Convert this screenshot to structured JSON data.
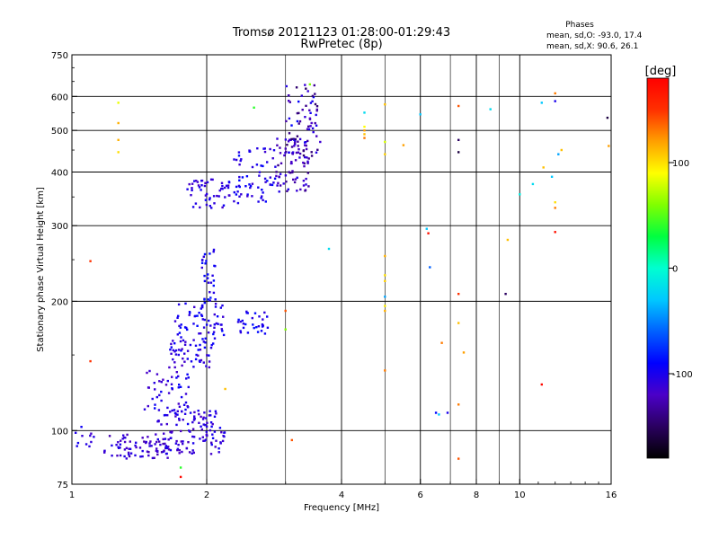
{
  "chart_data": {
    "type": "scatter",
    "title": "Tromsø 20121123 01:28:00-01:29:43",
    "subtitle": "RwPretec (8p)",
    "stats": {
      "heading": "Phases",
      "line1": "mean, sd,O: -93.0, 17.4",
      "line2": "mean, sd,X:  90.6, 26.1"
    },
    "xlabel": "Frequency [MHz]",
    "ylabel": "Stationary phase Virtual Height [km]",
    "x_scale": "log",
    "y_scale": "log",
    "xlim": [
      1,
      16
    ],
    "ylim": [
      75,
      750
    ],
    "x_ticks": [
      1,
      2,
      4,
      6,
      8,
      10,
      16
    ],
    "x_tick_labels": [
      "1",
      "2",
      "4",
      "6",
      "8",
      "10",
      "16"
    ],
    "y_ticks": [
      75,
      100,
      200,
      300,
      400,
      500,
      600,
      750
    ],
    "y_tick_labels": [
      "75",
      "100",
      "200",
      "300",
      "400",
      "500",
      "600",
      "750"
    ],
    "grid": true,
    "colorbar": {
      "label": "[deg]",
      "range": [
        -180,
        180
      ],
      "ticks": [
        100,
        0,
        -100
      ],
      "tick_labels": [
        "100",
        "0",
        "-100"
      ],
      "colors": [
        "#000000",
        "#2a0060",
        "#4b00c8",
        "#0000ff",
        "#0060ff",
        "#00c8ff",
        "#00ffd0",
        "#00ff40",
        "#80ff00",
        "#ffff00",
        "#ffa000",
        "#ff3000",
        "#ff0000"
      ]
    },
    "clusters": [
      {
        "x": [
          1.0,
          1.12
        ],
        "y": [
          90,
          100
        ],
        "n": 10,
        "phase": [
          -120,
          -95
        ]
      },
      {
        "x": [
          1.18,
          1.65
        ],
        "y": [
          86,
          98
        ],
        "n": 75,
        "phase": [
          -130,
          -100
        ]
      },
      {
        "x": [
          1.6,
          2.2
        ],
        "y": [
          88,
          102
        ],
        "n": 70,
        "phase": [
          -125,
          -95
        ]
      },
      {
        "x": [
          1.55,
          2.1
        ],
        "y": [
          102,
          112
        ],
        "n": 55,
        "phase": [
          -120,
          -95
        ]
      },
      {
        "x": [
          1.45,
          1.85
        ],
        "y": [
          112,
          140
        ],
        "n": 45,
        "phase": [
          -120,
          -90
        ]
      },
      {
        "x": [
          1.65,
          2.1
        ],
        "y": [
          140,
          165
        ],
        "n": 55,
        "phase": [
          -120,
          -90
        ]
      },
      {
        "x": [
          1.7,
          2.2
        ],
        "y": [
          160,
          200
        ],
        "n": 60,
        "phase": [
          -115,
          -85
        ]
      },
      {
        "x": [
          2.35,
          2.75
        ],
        "y": [
          168,
          190
        ],
        "n": 30,
        "phase": [
          -110,
          -85
        ]
      },
      {
        "x": [
          1.95,
          2.1
        ],
        "y": [
          200,
          265
        ],
        "n": 30,
        "phase": [
          -110,
          -80
        ]
      },
      {
        "x": [
          1.8,
          2.35
        ],
        "y": [
          330,
          385
        ],
        "n": 55,
        "phase": [
          -120,
          -95
        ]
      },
      {
        "x": [
          2.3,
          2.85
        ],
        "y": [
          340,
          460
        ],
        "n": 60,
        "phase": [
          -115,
          -85
        ]
      },
      {
        "x": [
          2.85,
          3.4
        ],
        "y": [
          360,
          480
        ],
        "n": 75,
        "phase": [
          -140,
          -100
        ]
      },
      {
        "x": [
          3.0,
          3.6
        ],
        "y": [
          430,
          640
        ],
        "n": 70,
        "phase": [
          -150,
          -90
        ]
      }
    ],
    "isolated_points": [
      {
        "x": 1.05,
        "y": 102,
        "phase": -95
      },
      {
        "x": 1.1,
        "y": 248,
        "phase": 150
      },
      {
        "x": 1.1,
        "y": 145,
        "phase": 150
      },
      {
        "x": 1.27,
        "y": 580,
        "phase": 85
      },
      {
        "x": 1.27,
        "y": 520,
        "phase": 115
      },
      {
        "x": 1.27,
        "y": 475,
        "phase": 115
      },
      {
        "x": 1.27,
        "y": 445,
        "phase": 100
      },
      {
        "x": 1.75,
        "y": 78,
        "phase": 175
      },
      {
        "x": 1.75,
        "y": 82,
        "phase": 40
      },
      {
        "x": 2.2,
        "y": 125,
        "phase": 110
      },
      {
        "x": 2.55,
        "y": 565,
        "phase": 40
      },
      {
        "x": 3.0,
        "y": 190,
        "phase": 140
      },
      {
        "x": 3.0,
        "y": 172,
        "phase": 60
      },
      {
        "x": 3.1,
        "y": 95,
        "phase": 140
      },
      {
        "x": 3.4,
        "y": 640,
        "phase": 60
      },
      {
        "x": 3.75,
        "y": 265,
        "phase": -20
      },
      {
        "x": 4.5,
        "y": 550,
        "phase": -20
      },
      {
        "x": 4.5,
        "y": 510,
        "phase": 90
      },
      {
        "x": 4.5,
        "y": 500,
        "phase": 120
      },
      {
        "x": 4.5,
        "y": 490,
        "phase": 110
      },
      {
        "x": 4.5,
        "y": 480,
        "phase": 130
      },
      {
        "x": 5.0,
        "y": 575,
        "phase": 110
      },
      {
        "x": 5.0,
        "y": 470,
        "phase": 80
      },
      {
        "x": 5.0,
        "y": 440,
        "phase": 105
      },
      {
        "x": 5.0,
        "y": 255,
        "phase": 115
      },
      {
        "x": 5.0,
        "y": 230,
        "phase": 100
      },
      {
        "x": 5.0,
        "y": 223,
        "phase": 105
      },
      {
        "x": 5.0,
        "y": 205,
        "phase": -40
      },
      {
        "x": 5.0,
        "y": 195,
        "phase": 95
      },
      {
        "x": 5.0,
        "y": 190,
        "phase": 115
      },
      {
        "x": 5.0,
        "y": 138,
        "phase": 130
      },
      {
        "x": 5.5,
        "y": 462,
        "phase": 120
      },
      {
        "x": 6.0,
        "y": 545,
        "phase": -30
      },
      {
        "x": 6.2,
        "y": 295,
        "phase": -30
      },
      {
        "x": 6.25,
        "y": 288,
        "phase": 170
      },
      {
        "x": 6.3,
        "y": 240,
        "phase": -60
      },
      {
        "x": 6.5,
        "y": 110,
        "phase": -90
      },
      {
        "x": 6.6,
        "y": 109,
        "phase": -30
      },
      {
        "x": 6.7,
        "y": 160,
        "phase": 130
      },
      {
        "x": 6.9,
        "y": 110,
        "phase": -100
      },
      {
        "x": 7.3,
        "y": 570,
        "phase": 140
      },
      {
        "x": 7.3,
        "y": 475,
        "phase": -150
      },
      {
        "x": 7.3,
        "y": 445,
        "phase": -160
      },
      {
        "x": 7.3,
        "y": 208,
        "phase": 150
      },
      {
        "x": 7.3,
        "y": 178,
        "phase": 110
      },
      {
        "x": 7.3,
        "y": 115,
        "phase": 130
      },
      {
        "x": 7.3,
        "y": 86,
        "phase": 140
      },
      {
        "x": 7.5,
        "y": 152,
        "phase": 120
      },
      {
        "x": 8.6,
        "y": 560,
        "phase": -20
      },
      {
        "x": 9.3,
        "y": 208,
        "phase": -150
      },
      {
        "x": 9.4,
        "y": 278,
        "phase": 110
      },
      {
        "x": 10.0,
        "y": 355,
        "phase": -10
      },
      {
        "x": 10.7,
        "y": 375,
        "phase": -20
      },
      {
        "x": 11.2,
        "y": 128,
        "phase": 175
      },
      {
        "x": 11.2,
        "y": 580,
        "phase": -30
      },
      {
        "x": 11.3,
        "y": 410,
        "phase": 110
      },
      {
        "x": 11.8,
        "y": 390,
        "phase": -30
      },
      {
        "x": 12.0,
        "y": 340,
        "phase": 100
      },
      {
        "x": 12.0,
        "y": 330,
        "phase": 130
      },
      {
        "x": 12.0,
        "y": 290,
        "phase": 170
      },
      {
        "x": 12.0,
        "y": 585,
        "phase": -100
      },
      {
        "x": 12.0,
        "y": 610,
        "phase": 130
      },
      {
        "x": 12.2,
        "y": 440,
        "phase": -40
      },
      {
        "x": 12.4,
        "y": 450,
        "phase": 110
      },
      {
        "x": 15.7,
        "y": 535,
        "phase": -160
      },
      {
        "x": 15.8,
        "y": 460,
        "phase": 120
      }
    ]
  }
}
